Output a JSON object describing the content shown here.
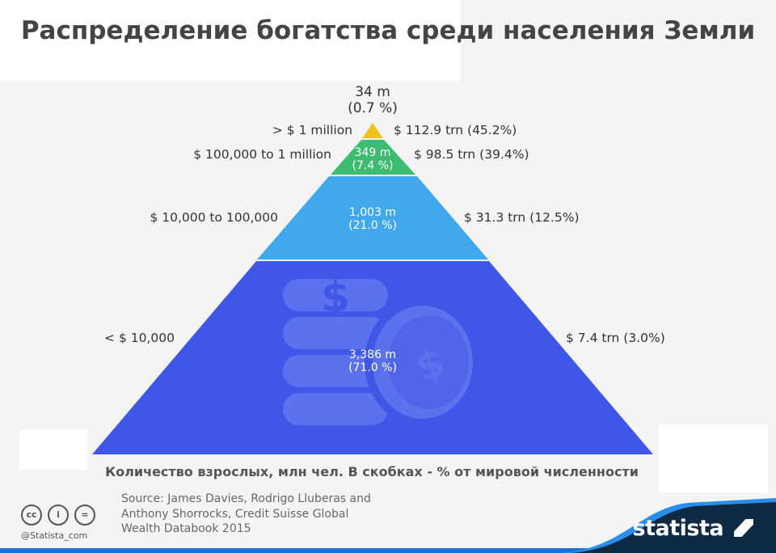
{
  "title": "Распределение богатства среди населения Земли",
  "chart_data": {
    "type": "pyramid",
    "title": "Распределение богатства среди населения Земли",
    "xlabel": "Количество взрослых, млн чел. В скобках - % от мировой численности",
    "tiers": [
      {
        "wealth": "> $ 1 million",
        "adults": "34 m",
        "adults_pct": "(0.7 %)",
        "wealth_total": "$ 112.9 trn (45.2%)",
        "adults_m": 34,
        "pct": 0.7,
        "trn": 112.9,
        "trn_pct": 45.2,
        "color": "#f0c21a"
      },
      {
        "wealth": "$ 100,000 to 1 million",
        "adults": "349 m",
        "adults_pct": "(7.4 %)",
        "wealth_total": "$ 98.5 trn (39.4%)",
        "adults_m": 349,
        "pct": 7.4,
        "trn": 98.5,
        "trn_pct": 39.4,
        "color": "#3dbb6e"
      },
      {
        "wealth": "$ 10,000 to 100,000",
        "adults": "1,003 m",
        "adults_pct": "(21.0 %)",
        "wealth_total": "$ 31.3 trn (12.5%)",
        "adults_m": 1003,
        "pct": 21.0,
        "trn": 31.3,
        "trn_pct": 12.5,
        "color": "#41a8ee"
      },
      {
        "wealth": "< $ 10,000",
        "adults": "3,386 m",
        "adults_pct": "(71.0 %)",
        "wealth_total": "$ 7.4 trn (3.0%)",
        "adults_m": 3386,
        "pct": 71.0,
        "trn": 7.4,
        "trn_pct": 3.0,
        "color": "#3f57e6"
      }
    ]
  },
  "footer": {
    "source": [
      "Source: James Davies, Rodrigo Lluberas and",
      "Anthony Shorrocks, Credit Suisse Global",
      "Wealth Databook 2015"
    ],
    "handle": "@Statista_com",
    "license_icons": [
      "cc-icon",
      "attribution-icon",
      "no-derivatives-icon"
    ],
    "brand": "statista"
  }
}
